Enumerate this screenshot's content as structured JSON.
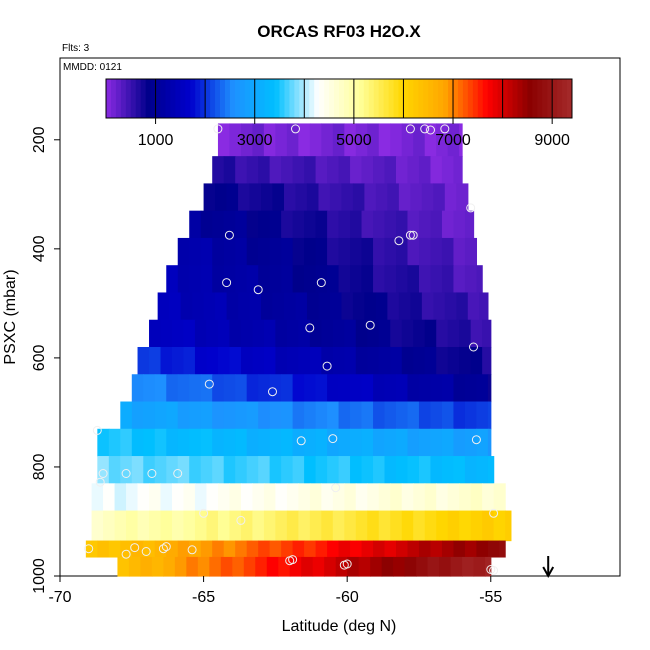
{
  "chart_data": {
    "type": "heatmap",
    "title": "ORCAS RF03 H2O.X",
    "annotations": {
      "flights": "Flts: 3",
      "mmdd": "MMDD: 0121"
    },
    "xlabel": "Latitude (deg N)",
    "ylabel": "PSXC (mbar)",
    "xlim": [
      -70,
      -50.5
    ],
    "ylim": [
      1000,
      50
    ],
    "x_ticks": [
      {
        "value": -70,
        "label": "-70"
      },
      {
        "value": -65,
        "label": "-65"
      },
      {
        "value": -60,
        "label": "-60"
      },
      {
        "value": -55,
        "label": "-55"
      }
    ],
    "y_ticks": [
      {
        "value": 200,
        "label": "200"
      },
      {
        "value": 400,
        "label": "400"
      },
      {
        "value": 600,
        "label": "600"
      },
      {
        "value": 800,
        "label": "800"
      },
      {
        "value": 1000,
        "label": "1000"
      }
    ],
    "colorbar": {
      "range": [
        0,
        9400
      ],
      "ticks": [
        {
          "value": 1000,
          "label": "1000"
        },
        {
          "value": 3000,
          "label": "3000"
        },
        {
          "value": 5000,
          "label": "5000"
        },
        {
          "value": 7000,
          "label": "7000"
        },
        {
          "value": 9000,
          "label": "9000"
        }
      ],
      "colors": [
        "#8a2be2",
        "#00008b",
        "#0000cd",
        "#1e90ff",
        "#00bfff",
        "#ffffff",
        "#ffff99",
        "#ffd700",
        "#ffa500",
        "#ff0000",
        "#8b0000",
        "#a52a2a"
      ]
    },
    "bands": [
      {
        "p0": 170,
        "p1": 230,
        "lat0": -64.5,
        "lat1": -56.0,
        "v0": 120,
        "v1": 80
      },
      {
        "p0": 230,
        "p1": 280,
        "lat0": -64.7,
        "lat1": -56.0,
        "v0": 600,
        "v1": 120
      },
      {
        "p0": 280,
        "p1": 330,
        "lat0": -65.0,
        "lat1": -55.8,
        "v0": 900,
        "v1": 150
      },
      {
        "p0": 330,
        "p1": 380,
        "lat0": -65.5,
        "lat1": -55.6,
        "v0": 1100,
        "v1": 200
      },
      {
        "p0": 380,
        "p1": 430,
        "lat0": -65.9,
        "lat1": -55.5,
        "v0": 1300,
        "v1": 250
      },
      {
        "p0": 430,
        "p1": 480,
        "lat0": -66.3,
        "lat1": -55.3,
        "v0": 1400,
        "v1": 350
      },
      {
        "p0": 480,
        "p1": 530,
        "lat0": -66.6,
        "lat1": -55.1,
        "v0": 1500,
        "v1": 450
      },
      {
        "p0": 530,
        "p1": 580,
        "lat0": -66.9,
        "lat1": -55.0,
        "v0": 1600,
        "v1": 550
      },
      {
        "p0": 580,
        "p1": 630,
        "lat0": -67.3,
        "lat1": -55.0,
        "v0": 2000,
        "v1": 700
      },
      {
        "p0": 630,
        "p1": 680,
        "lat0": -67.5,
        "lat1": -55.0,
        "v0": 2600,
        "v1": 900
      },
      {
        "p0": 680,
        "p1": 730,
        "lat0": -67.9,
        "lat1": -55.0,
        "v0": 3000,
        "v1": 2000
      },
      {
        "p0": 730,
        "p1": 780,
        "lat0": -68.7,
        "lat1": -55.0,
        "v0": 3500,
        "v1": 2800
      },
      {
        "p0": 780,
        "p1": 830,
        "lat0": -68.7,
        "lat1": -54.9,
        "v0": 3800,
        "v1": 3300
      },
      {
        "p0": 830,
        "p1": 880,
        "lat0": -68.9,
        "lat1": -54.5,
        "v0": 4200,
        "v1": 4700
      },
      {
        "p0": 880,
        "p1": 935,
        "lat0": -68.9,
        "lat1": -54.3,
        "v0": 4800,
        "v1": 6200
      },
      {
        "p0": 935,
        "p1": 965,
        "lat0": -69.1,
        "lat1": -54.5,
        "v0": 6200,
        "v1": 8700
      },
      {
        "p0": 965,
        "p1": 1000,
        "lat0": -68.0,
        "lat1": -55.0,
        "v0": 6400,
        "v1": 9300
      }
    ],
    "flight_points": [
      {
        "lat": -64.5,
        "p": 180
      },
      {
        "lat": -61.8,
        "p": 180
      },
      {
        "lat": -57.8,
        "p": 180
      },
      {
        "lat": -57.3,
        "p": 180
      },
      {
        "lat": -57.1,
        "p": 182
      },
      {
        "lat": -56.6,
        "p": 180
      },
      {
        "lat": -55.7,
        "p": 325
      },
      {
        "lat": -64.1,
        "p": 375
      },
      {
        "lat": -57.8,
        "p": 375
      },
      {
        "lat": -57.7,
        "p": 375
      },
      {
        "lat": -58.2,
        "p": 385
      },
      {
        "lat": -64.2,
        "p": 462
      },
      {
        "lat": -60.9,
        "p": 462
      },
      {
        "lat": -63.1,
        "p": 475
      },
      {
        "lat": -59.2,
        "p": 540
      },
      {
        "lat": -61.3,
        "p": 545
      },
      {
        "lat": -55.6,
        "p": 580
      },
      {
        "lat": -60.7,
        "p": 615
      },
      {
        "lat": -64.8,
        "p": 648
      },
      {
        "lat": -62.6,
        "p": 662
      },
      {
        "lat": -68.7,
        "p": 733
      },
      {
        "lat": -60.5,
        "p": 748
      },
      {
        "lat": -61.6,
        "p": 752
      },
      {
        "lat": -55.5,
        "p": 750
      },
      {
        "lat": -68.5,
        "p": 812
      },
      {
        "lat": -67.7,
        "p": 812
      },
      {
        "lat": -66.8,
        "p": 812
      },
      {
        "lat": -65.9,
        "p": 812
      },
      {
        "lat": -68.6,
        "p": 828
      },
      {
        "lat": -60.4,
        "p": 838
      },
      {
        "lat": -65.0,
        "p": 885
      },
      {
        "lat": -63.7,
        "p": 898
      },
      {
        "lat": -54.9,
        "p": 885
      },
      {
        "lat": -69.0,
        "p": 950
      },
      {
        "lat": -67.4,
        "p": 948
      },
      {
        "lat": -66.3,
        "p": 946
      },
      {
        "lat": -66.4,
        "p": 950
      },
      {
        "lat": -67.0,
        "p": 955
      },
      {
        "lat": -67.7,
        "p": 960
      },
      {
        "lat": -65.4,
        "p": 952
      },
      {
        "lat": -61.9,
        "p": 970
      },
      {
        "lat": -62.0,
        "p": 972
      },
      {
        "lat": -60.0,
        "p": 978
      },
      {
        "lat": -60.1,
        "p": 980
      },
      {
        "lat": -55.0,
        "p": 988
      },
      {
        "lat": -54.9,
        "p": 990
      }
    ],
    "marker": {
      "lat": -53.0,
      "direction": "down"
    }
  }
}
